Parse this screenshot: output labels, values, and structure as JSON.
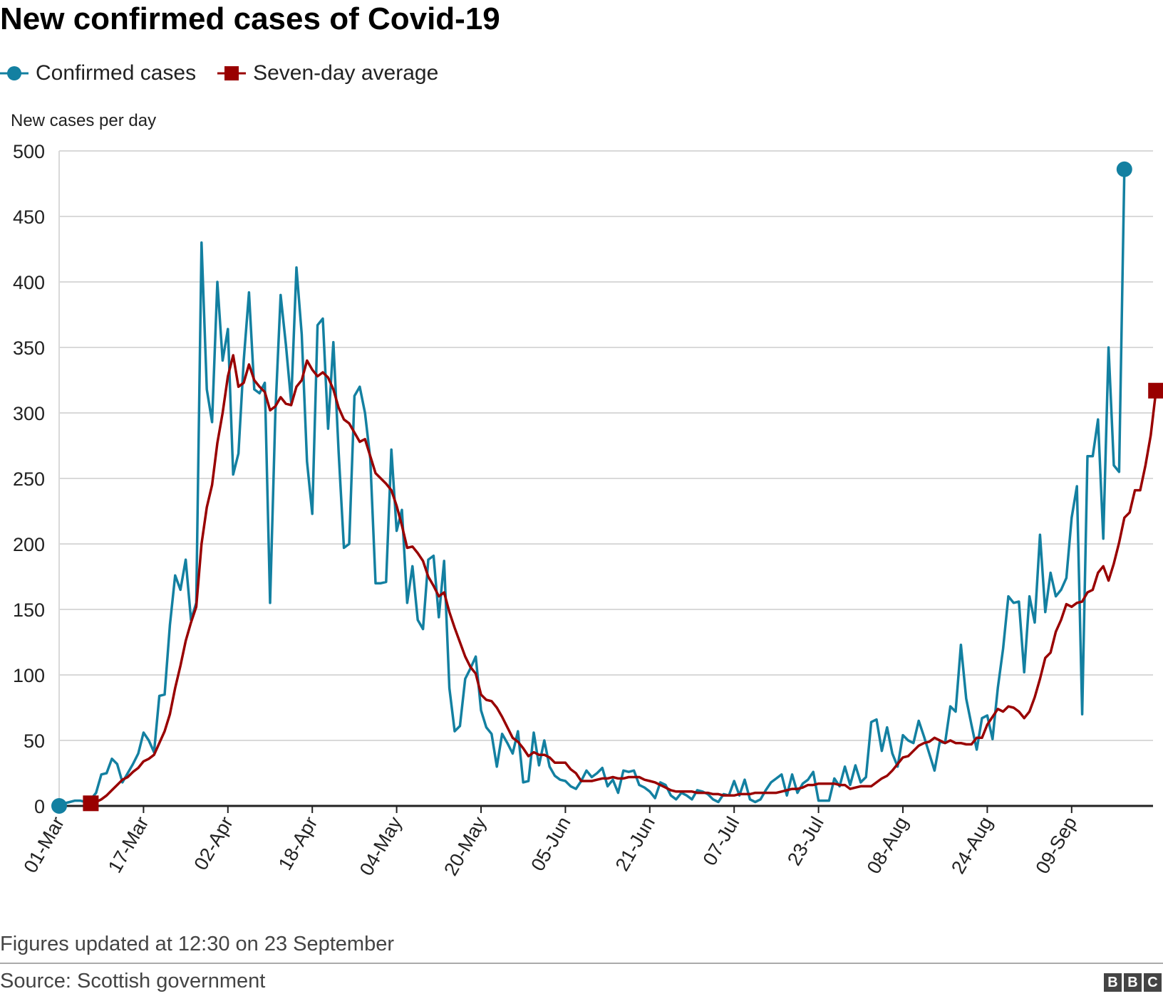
{
  "title": "New confirmed cases of Covid-19",
  "legend": [
    {
      "label": "Confirmed cases",
      "color": "#1380A1",
      "marker": "circle"
    },
    {
      "label": "Seven-day average",
      "color": "#990000",
      "marker": "square"
    }
  ],
  "footnote": "Figures updated at 12:30 on 23 September",
  "source": "Source: Scottish government",
  "logo": [
    "B",
    "B",
    "C"
  ],
  "chart_data": {
    "type": "line",
    "title": "New confirmed cases of Covid-19",
    "ylabel": "New cases per day",
    "xlabel": "",
    "ylim": [
      0,
      500
    ],
    "yticks": [
      0,
      50,
      100,
      150,
      200,
      250,
      300,
      350,
      400,
      450,
      500
    ],
    "x_start": "01-Mar",
    "xtick_labels": [
      "01-Mar",
      "17-Mar",
      "02-Apr",
      "18-Apr",
      "04-May",
      "20-May",
      "05-Jun",
      "21-Jun",
      "07-Jul",
      "23-Jul",
      "08-Aug",
      "24-Aug",
      "09-Sep"
    ],
    "xtick_days": [
      0,
      16,
      32,
      48,
      64,
      80,
      96,
      112,
      128,
      144,
      160,
      176,
      192
    ],
    "grid": true,
    "legend_position": "top-left",
    "series": [
      {
        "name": "Confirmed cases",
        "color": "#1380A1",
        "values": [
          0,
          2,
          3,
          4,
          4,
          3,
          5,
          10,
          24,
          25,
          36,
          32,
          18,
          25,
          32,
          40,
          56,
          50,
          41,
          84,
          85,
          138,
          176,
          165,
          188,
          142,
          155,
          430,
          318,
          293,
          400,
          340,
          364,
          253,
          269,
          340,
          392,
          318,
          315,
          323,
          155,
          300,
          390,
          352,
          308,
          411,
          360,
          263,
          223,
          367,
          372,
          288,
          354,
          270,
          197,
          200,
          313,
          320,
          300,
          265,
          170,
          170,
          171,
          272,
          210,
          226,
          155,
          183,
          142,
          135,
          188,
          191,
          144,
          187,
          90,
          57,
          61,
          97,
          105,
          114,
          73,
          60,
          55,
          30,
          55,
          48,
          40,
          57,
          18,
          19,
          56,
          31,
          50,
          30,
          23,
          20,
          19,
          15,
          13,
          19,
          27,
          22,
          25,
          29,
          15,
          20,
          10,
          27,
          26,
          27,
          16,
          14,
          11,
          6,
          18,
          16,
          8,
          5,
          10,
          8,
          5,
          12,
          11,
          9,
          5,
          3,
          9,
          8,
          19,
          8,
          20,
          5,
          3,
          5,
          12,
          18,
          21,
          24,
          8,
          24,
          10,
          17,
          20,
          26,
          4,
          4,
          4,
          21,
          15,
          30,
          16,
          31,
          18,
          22,
          64,
          66,
          42,
          60,
          40,
          30,
          54,
          50,
          48,
          65,
          53,
          40,
          27,
          49,
          48,
          76,
          72,
          123,
          82,
          62,
          43,
          67,
          69,
          51,
          90,
          120,
          160,
          155,
          156,
          102,
          160,
          140,
          207,
          148,
          178,
          160,
          165,
          174,
          220,
          244,
          70,
          267,
          267,
          295,
          204,
          350,
          260,
          255,
          486
        ]
      },
      {
        "name": "Seven-day average",
        "color": "#990000",
        "start_index": 6,
        "values": [
          2,
          3,
          5,
          8,
          12,
          16,
          20,
          22,
          26,
          29,
          34,
          36,
          39,
          48,
          57,
          70,
          90,
          107,
          126,
          140,
          152,
          200,
          228,
          245,
          277,
          300,
          328,
          344,
          320,
          323,
          337,
          325,
          320,
          316,
          302,
          305,
          312,
          307,
          306,
          320,
          325,
          340,
          333,
          328,
          331,
          327,
          318,
          304,
          295,
          292,
          285,
          278,
          280,
          267,
          254,
          250,
          246,
          241,
          229,
          214,
          197,
          198,
          193,
          187,
          175,
          168,
          160,
          163,
          148,
          136,
          125,
          114,
          106,
          101,
          85,
          81,
          80,
          75,
          68,
          60,
          52,
          49,
          44,
          38,
          41,
          39,
          39,
          37,
          33,
          33,
          33,
          28,
          25,
          19,
          19,
          19,
          20,
          21,
          21,
          22,
          21,
          21,
          22,
          22,
          22,
          20,
          19,
          18,
          16,
          14,
          12,
          11,
          11,
          11,
          11,
          10,
          10,
          10,
          9,
          9,
          8,
          8,
          8,
          9,
          9,
          9,
          10,
          10,
          10,
          10,
          10,
          11,
          12,
          13,
          13,
          14,
          16,
          16,
          17,
          17,
          17,
          17,
          16,
          16,
          13,
          14,
          15,
          15,
          15,
          18,
          21,
          23,
          27,
          32,
          37,
          38,
          42,
          46,
          48,
          49,
          52,
          50,
          48,
          50,
          48,
          48,
          47,
          47,
          52,
          52,
          62,
          68,
          74,
          72,
          76,
          75,
          72,
          67,
          72,
          83,
          97,
          113,
          117,
          133,
          142,
          154,
          152,
          155,
          156,
          163,
          165,
          178,
          183,
          172,
          185,
          201,
          220,
          224,
          241,
          241,
          260,
          283,
          317
        ]
      }
    ]
  }
}
